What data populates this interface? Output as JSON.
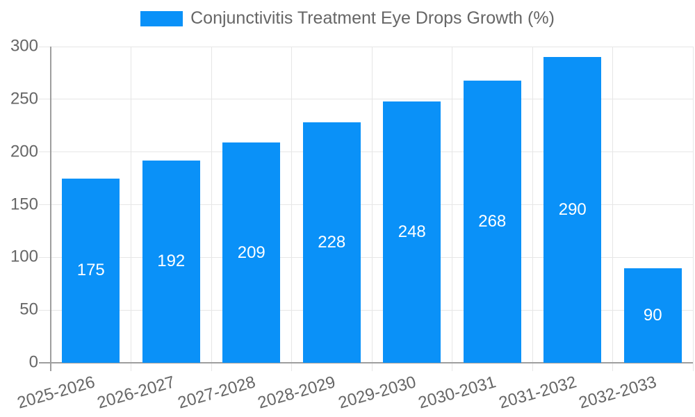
{
  "chart_data": {
    "type": "bar",
    "title": "Conjunctivitis Treatment Eye Drops Growth (%)",
    "categories": [
      "2025-2026",
      "2026-2027",
      "2027-2028",
      "2028-2029",
      "2029-2030",
      "2030-2031",
      "2031-2032",
      "2032-2033"
    ],
    "values": [
      175,
      192,
      209,
      228,
      248,
      268,
      290,
      90
    ],
    "xlabel": "",
    "ylabel": "",
    "ylim": [
      0,
      300
    ],
    "yticks": [
      0,
      50,
      100,
      150,
      200,
      250,
      300
    ],
    "grid": true,
    "legend_position": "top-center",
    "bar_value_labels": [
      "175",
      "192",
      "209",
      "228",
      "248",
      "268",
      "290",
      "90"
    ],
    "colors": {
      "bar": "#0a91f8",
      "bar_label_text": "#ffffff",
      "axis_text": "#666666",
      "legend_text": "#666666",
      "gridline": "#e6e6e6",
      "axis_line": "#9e9e9e",
      "background": "#ffffff"
    }
  }
}
